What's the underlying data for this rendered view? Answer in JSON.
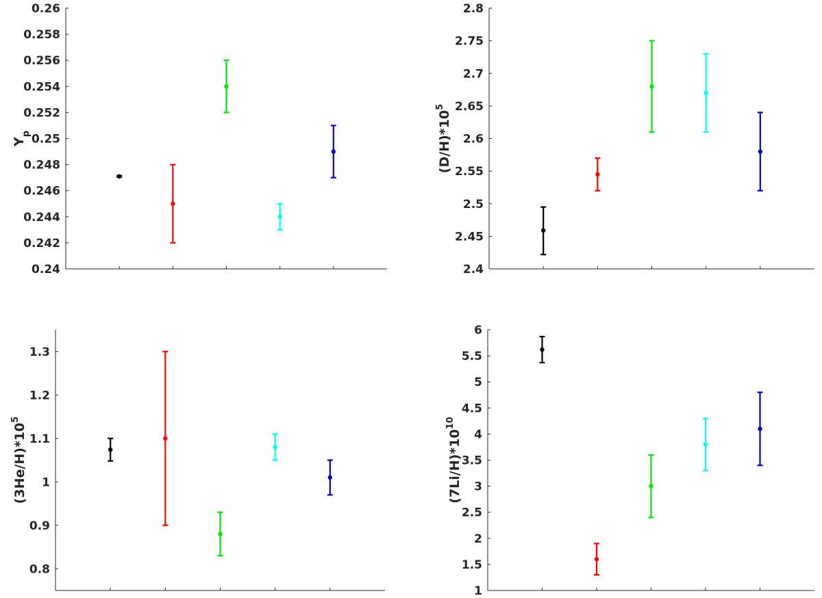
{
  "chart_data": [
    {
      "type": "scatter",
      "panel": "top-left",
      "ylabel": "Yp",
      "ylim": [
        0.24,
        0.26
      ],
      "yticks": [
        "0.24",
        "0.242",
        "0.244",
        "0.246",
        "0.248",
        "0.25",
        "0.252",
        "0.254",
        "0.256",
        "0.258",
        "0.26"
      ],
      "xlim": [
        0,
        6
      ],
      "grid": false,
      "points": [
        {
          "x": 1,
          "y": 0.2471,
          "low": 0.24705,
          "high": 0.24715,
          "color": "#000000"
        },
        {
          "x": 2,
          "y": 0.245,
          "low": 0.242,
          "high": 0.248,
          "color": "#ff0000"
        },
        {
          "x": 3,
          "y": 0.254,
          "low": 0.252,
          "high": 0.256,
          "color": "#00e600"
        },
        {
          "x": 4,
          "y": 0.244,
          "low": 0.243,
          "high": 0.245,
          "color": "#00ffff"
        },
        {
          "x": 5,
          "y": 0.249,
          "low": 0.247,
          "high": 0.251,
          "color": "#0000cc"
        }
      ]
    },
    {
      "type": "scatter",
      "panel": "top-right",
      "ylabel": "(D/H)*10",
      "ylabel_sup": "5",
      "ylim": [
        2.4,
        2.8
      ],
      "yticks": [
        "2.4",
        "2.45",
        "2.5",
        "2.55",
        "2.6",
        "2.65",
        "2.7",
        "2.75",
        "2.8"
      ],
      "xlim": [
        0,
        6
      ],
      "grid": false,
      "points": [
        {
          "x": 1,
          "y": 2.459,
          "low": 2.422,
          "high": 2.495,
          "color": "#000000"
        },
        {
          "x": 2,
          "y": 2.545,
          "low": 2.52,
          "high": 2.57,
          "color": "#ff0000"
        },
        {
          "x": 3,
          "y": 2.68,
          "low": 2.61,
          "high": 2.75,
          "color": "#00e600"
        },
        {
          "x": 4,
          "y": 2.67,
          "low": 2.61,
          "high": 2.73,
          "color": "#00ffff"
        },
        {
          "x": 5,
          "y": 2.58,
          "low": 2.52,
          "high": 2.64,
          "color": "#0000cc"
        }
      ]
    },
    {
      "type": "scatter",
      "panel": "bottom-left",
      "ylabel": "(3He/H)*10",
      "ylabel_sup": "5",
      "ylim": [
        0.75,
        1.35
      ],
      "yticks": [
        "0.8",
        "0.9",
        "1",
        "1.1",
        "1.2",
        "1.3"
      ],
      "xlim": [
        0,
        6
      ],
      "grid": false,
      "points": [
        {
          "x": 1,
          "y": 1.074,
          "low": 1.048,
          "high": 1.1,
          "color": "#000000"
        },
        {
          "x": 2,
          "y": 1.1,
          "low": 0.9,
          "high": 1.3,
          "color": "#ff0000"
        },
        {
          "x": 3,
          "y": 0.88,
          "low": 0.83,
          "high": 0.93,
          "color": "#00e600"
        },
        {
          "x": 4,
          "y": 1.08,
          "low": 1.05,
          "high": 1.11,
          "color": "#00ffff"
        },
        {
          "x": 5,
          "y": 1.01,
          "low": 0.97,
          "high": 1.05,
          "color": "#0000cc"
        }
      ]
    },
    {
      "type": "scatter",
      "panel": "bottom-right",
      "ylabel": "(7Li/H)*10",
      "ylabel_sup": "10",
      "ylim": [
        1,
        6
      ],
      "yticks": [
        "1",
        "1.5",
        "2",
        "2.5",
        "3",
        "3.5",
        "4",
        "4.5",
        "5",
        "5.5",
        "6"
      ],
      "xlim": [
        0,
        6
      ],
      "grid": false,
      "points": [
        {
          "x": 1,
          "y": 5.62,
          "low": 5.37,
          "high": 5.87,
          "color": "#000000"
        },
        {
          "x": 2,
          "y": 1.6,
          "low": 1.3,
          "high": 1.9,
          "color": "#ff0000"
        },
        {
          "x": 3,
          "y": 3.0,
          "low": 2.4,
          "high": 3.6,
          "color": "#00e600"
        },
        {
          "x": 4,
          "y": 3.8,
          "low": 3.3,
          "high": 4.3,
          "color": "#00ffff"
        },
        {
          "x": 5,
          "y": 4.1,
          "low": 3.4,
          "high": 4.8,
          "color": "#0000cc"
        }
      ]
    }
  ]
}
